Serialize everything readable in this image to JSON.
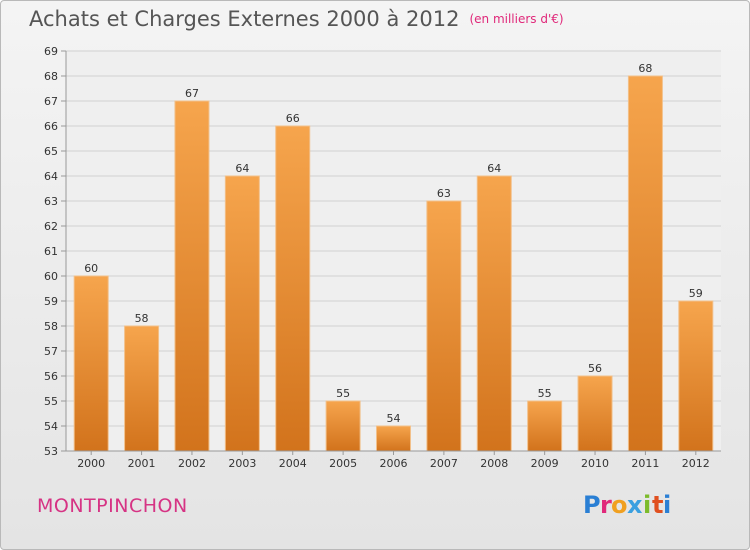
{
  "title": "Achats et Charges Externes 2000 à 2012",
  "title_unit": "(en milliers d'€)",
  "commune": "MONTPINCHON",
  "logo_text": "Proxiti",
  "colors": {
    "bar_top": "#f6a54d",
    "bar_bottom": "#d2731c",
    "grid": "#d0d0d0",
    "title": "#555555",
    "commune": "#d63384"
  },
  "chart_data": {
    "type": "bar",
    "title": "Achats et Charges Externes 2000 à 2012",
    "categories": [
      "2000",
      "2001",
      "2002",
      "2003",
      "2004",
      "2005",
      "2006",
      "2007",
      "2008",
      "2009",
      "2010",
      "2011",
      "2012"
    ],
    "values": [
      60,
      58,
      67,
      64,
      66,
      55,
      54,
      63,
      64,
      55,
      56,
      68,
      59
    ],
    "ylim": [
      53,
      69
    ],
    "yticks": [
      53,
      54,
      55,
      56,
      57,
      58,
      59,
      60,
      61,
      62,
      63,
      64,
      65,
      66,
      67,
      68,
      69
    ],
    "grid": true,
    "legend": "none"
  }
}
